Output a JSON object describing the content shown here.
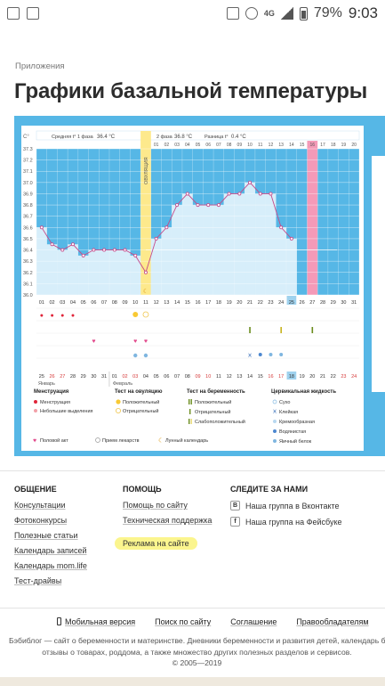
{
  "status": {
    "network": "4G",
    "battery": "79%",
    "time": "9:03"
  },
  "breadcrumb": "Приложения",
  "title": "Графики базальной температуры",
  "chart": {
    "unit": "C°",
    "phase1_label": "Средняя t° 1 фаза",
    "phase1_value": "36.4 °C",
    "phase2_label": "2 фаза",
    "phase2_value": "36.8 °C",
    "diff_label": "Разница t°",
    "diff_value": "0.4 °C",
    "ovulation": "ОВУЛЯЦИЯ",
    "y_ticks": [
      "37.3",
      "37.2",
      "37.1",
      "37.0",
      "36.9",
      "36.8",
      "36.7",
      "36.6",
      "36.5",
      "36.4",
      "36.3",
      "36.2",
      "36.1",
      "36.0"
    ],
    "top_days": [
      "01",
      "02",
      "03",
      "04",
      "05",
      "06",
      "07",
      "08",
      "09",
      "10",
      "11",
      "12",
      "13",
      "14",
      "15",
      "16",
      "17",
      "18",
      "19",
      "20"
    ],
    "bottom_days": [
      "01",
      "02",
      "03",
      "04",
      "05",
      "06",
      "07",
      "08",
      "09",
      "10",
      "11",
      "12",
      "13",
      "14",
      "15",
      "16",
      "17",
      "18",
      "19",
      "20",
      "21",
      "22",
      "23",
      "24",
      "25",
      "26",
      "27",
      "28",
      "29",
      "30",
      "31"
    ],
    "dates": [
      "25",
      "26",
      "27",
      "28",
      "29",
      "30",
      "31",
      "01",
      "02",
      "03",
      "04",
      "05",
      "06",
      "07",
      "08",
      "09",
      "10",
      "11",
      "12",
      "13",
      "14",
      "15",
      "16",
      "17",
      "18",
      "19",
      "20",
      "21",
      "22",
      "23",
      "24"
    ],
    "month1": "Январь",
    "month2": "Февраль",
    "highlight_day": "25",
    "highlight_date": "18"
  },
  "chart_data": {
    "type": "line",
    "x": [
      1,
      2,
      3,
      4,
      5,
      6,
      7,
      8,
      9,
      10,
      11,
      12,
      13,
      14,
      15,
      16,
      17,
      18,
      19,
      20,
      21,
      22,
      23,
      24,
      25
    ],
    "values": [
      36.6,
      36.45,
      36.4,
      36.45,
      36.35,
      36.4,
      36.4,
      36.4,
      36.4,
      36.35,
      36.2,
      36.5,
      36.6,
      36.8,
      36.9,
      36.8,
      36.8,
      36.8,
      36.9,
      36.9,
      37.0,
      36.9,
      36.9,
      36.6,
      36.5
    ],
    "ylim": [
      36.0,
      37.3
    ],
    "ylabel": "C°"
  },
  "legend": {
    "menstruation_title": "Менструация",
    "menstruation_items": [
      "Менструация",
      "Небольшие выделения"
    ],
    "ovulation_title": "Тест на овуляцию",
    "ovulation_items": [
      "Положительный",
      "Отрицательный"
    ],
    "pregnancy_title": "Тест на беременность",
    "pregnancy_items": [
      "Положительный",
      "Отрицательный",
      "Слабоположительный"
    ],
    "cervical_title": "Цервикальная жидкость",
    "cervical_items": [
      "Сухо",
      "Клейкая",
      "Кремообразная",
      "Водянистая",
      "Яичный белок"
    ],
    "sex": "Половой акт",
    "medicine": "Прием лекарств",
    "lunar": "Лунный календарь"
  },
  "footer": {
    "col1_title": "ОБЩЕНИЕ",
    "col1_links": [
      "Консультации",
      "Фотоконкурсы",
      "Полезные статьи",
      "Календарь записей",
      "Календарь mom.life",
      "Тест-драйвы"
    ],
    "col2_title": "ПОМОЩЬ",
    "col2_links": [
      "Помощь по сайту",
      "Техническая поддержка"
    ],
    "col2_highlight": "Реклама на сайте",
    "col3_title": "СЛЕДИТЕ ЗА НАМИ",
    "vk_badge": "B",
    "fb_badge": "f",
    "vk": "Наша группа в Вконтакте",
    "fb": "Наша группа на Фейсбуке"
  },
  "bottom": {
    "mobile": "Мобильная версия",
    "search": "Поиск по сайту",
    "agreement": "Соглашение",
    "rights": "Правообладателям",
    "about1": "Бэбиблог — сайт о беременности и материнстве. Дневники беременности и развития детей, календарь беремен",
    "about2": "отзывы о товарах, роддома, а также множество других полезных разделов и сервисов.",
    "copyright": "© 2005—2019"
  },
  "colors": {
    "accent": "#56b7e6",
    "ovulation": "#fde98c",
    "period": "#f49ab8",
    "line": "#c54a8a"
  }
}
